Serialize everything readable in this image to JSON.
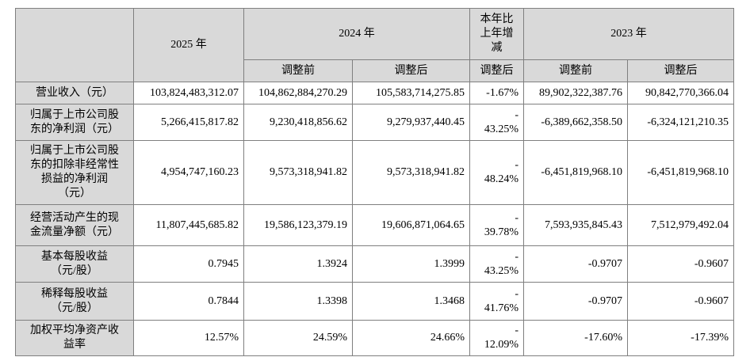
{
  "table": {
    "colors": {
      "header_bg": "#d9d9d9",
      "border": "#7f7f7f",
      "text": "#000000",
      "cell_bg": "#ffffff"
    },
    "header": {
      "corner": "",
      "col_2025": "2025 年",
      "col_2024": "2024 年",
      "col_change": "本年比\n上年增\n减",
      "col_2023": "2023 年",
      "sub_2024_before": "调整前",
      "sub_2024_after": "调整后",
      "sub_change_after": "调整后",
      "sub_2023_before": "调整前",
      "sub_2023_after": "调整后"
    },
    "rows": [
      {
        "label": "营业收入（元）",
        "v2025": "103,824,483,312.07",
        "v2024_before": "104,862,884,270.29",
        "v2024_after": "105,583,714,275.85",
        "change": "-1.67%",
        "v2023_before": "89,902,322,387.76",
        "v2023_after": "90,842,770,366.04"
      },
      {
        "label": "归属于上市公司股\n东的净利润（元）",
        "v2025": "5,266,415,817.82",
        "v2024_before": "9,230,418,856.62",
        "v2024_after": "9,279,937,440.45",
        "change": "-\n43.25%",
        "v2023_before": "-6,389,662,358.50",
        "v2023_after": "-6,324,121,210.35"
      },
      {
        "label": "归属于上市公司股\n东的扣除非经常性\n损益的净利润\n（元）",
        "v2025": "4,954,747,160.23",
        "v2024_before": "9,573,318,941.82",
        "v2024_after": "9,573,318,941.82",
        "change": "-\n48.24%",
        "v2023_before": "-6,451,819,968.10",
        "v2023_after": "-6,451,819,968.10"
      },
      {
        "label": "经营活动产生的现\n金流量净额（元）",
        "v2025": "11,807,445,685.82",
        "v2024_before": "19,586,123,379.19",
        "v2024_after": "19,606,871,064.65",
        "change": "-\n39.78%",
        "v2023_before": "7,593,935,845.43",
        "v2023_after": "7,512,979,492.04"
      },
      {
        "label": "基本每股收益\n（元/股）",
        "v2025": "0.7945",
        "v2024_before": "1.3924",
        "v2024_after": "1.3999",
        "change": "-\n43.25%",
        "v2023_before": "-0.9707",
        "v2023_after": "-0.9607"
      },
      {
        "label": "稀释每股收益\n（元/股）",
        "v2025": "0.7844",
        "v2024_before": "1.3398",
        "v2024_after": "1.3468",
        "change": "-\n41.76%",
        "v2023_before": "-0.9707",
        "v2023_after": "-0.9607"
      },
      {
        "label": "加权平均净资产收\n益率",
        "v2025": "12.57%",
        "v2024_before": "24.59%",
        "v2024_after": "24.66%",
        "change": "-\n12.09%",
        "v2023_before": "-17.60%",
        "v2023_after": "-17.39%"
      }
    ]
  }
}
